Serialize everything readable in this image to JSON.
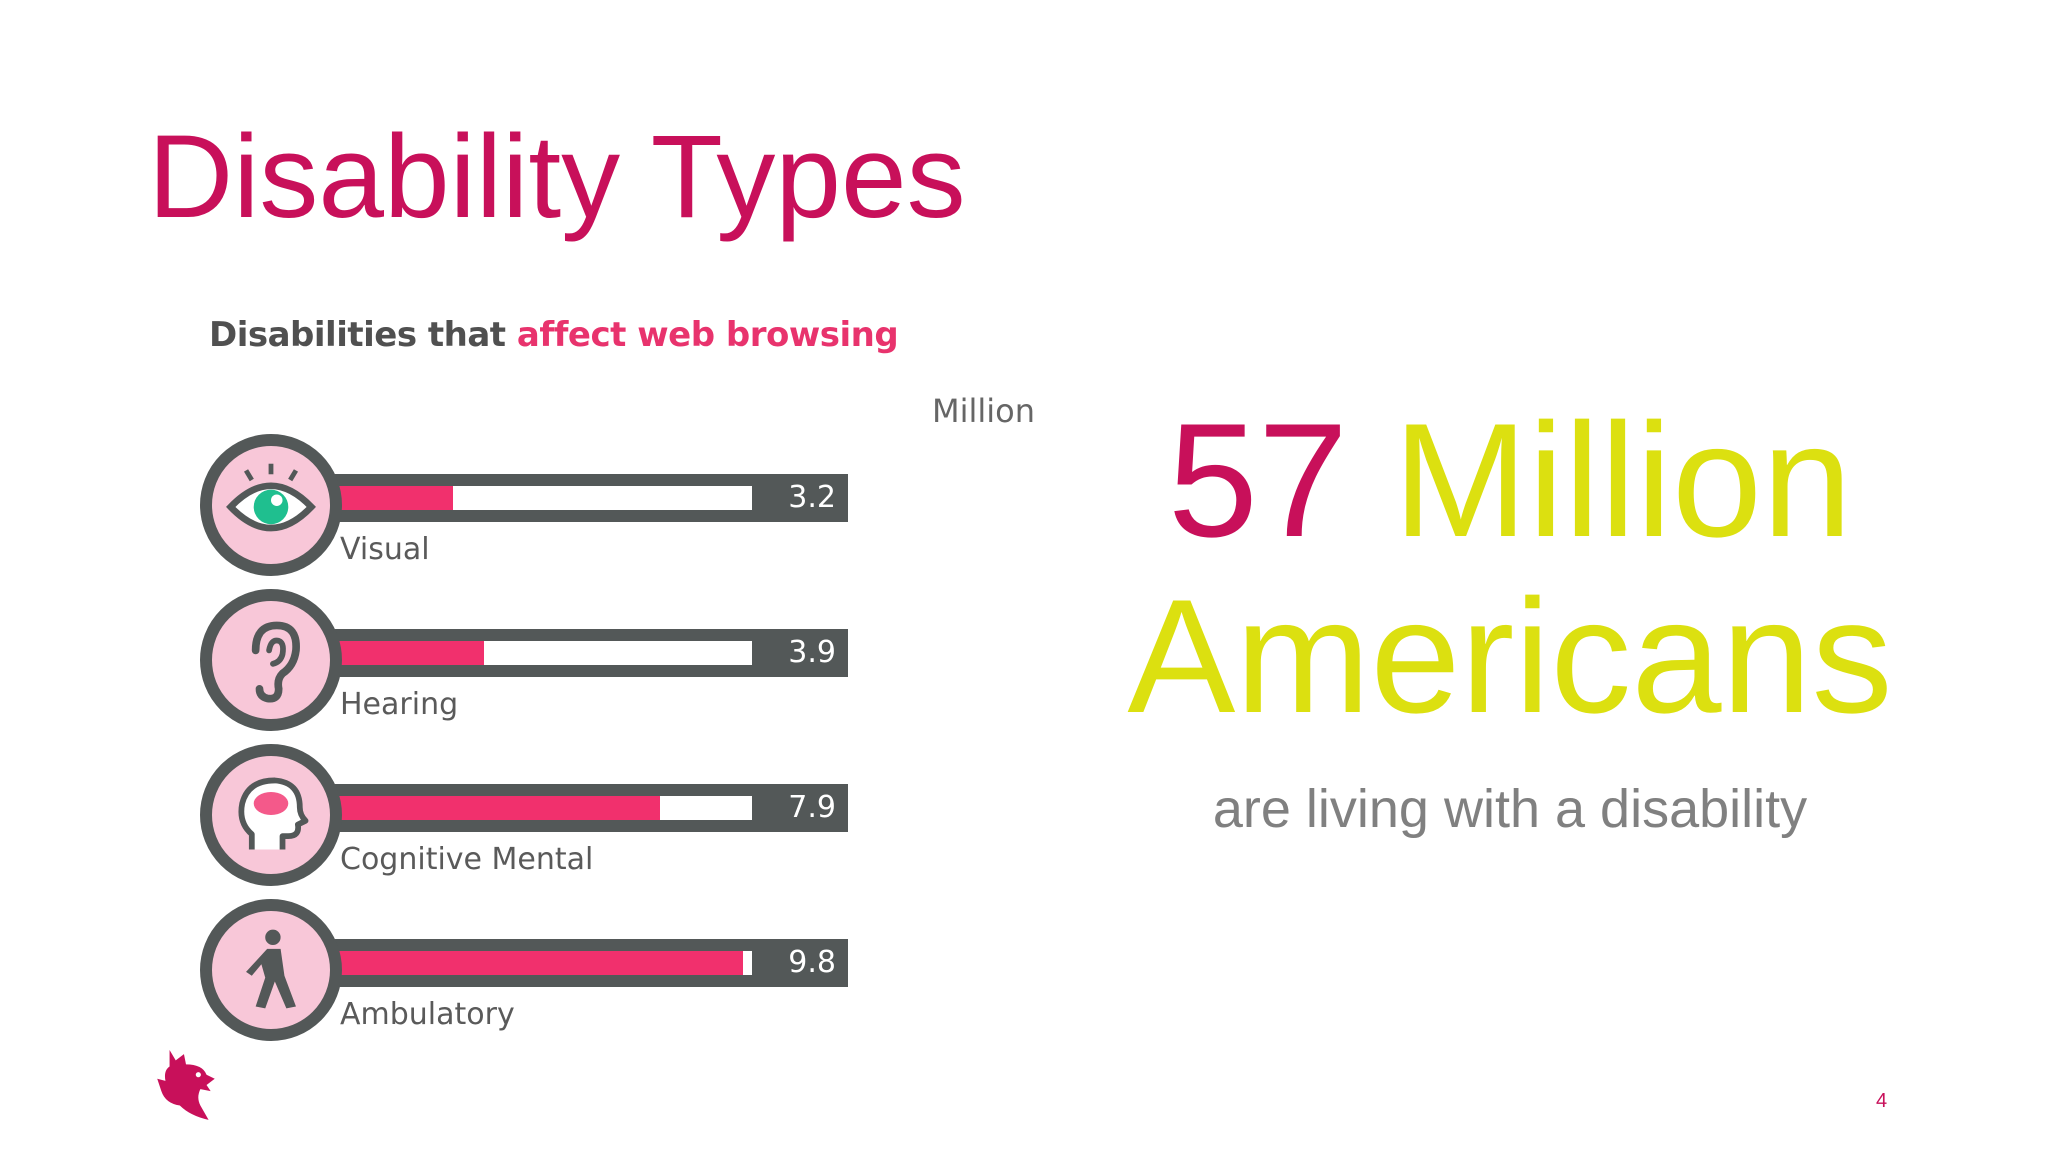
{
  "slide": {
    "title": "Disability Types",
    "page_number": "4"
  },
  "infographic": {
    "heading_prefix": "Disabilities that ",
    "heading_accent": "affect web browsing",
    "unit_label": "Million",
    "max_value": 10,
    "rows": [
      {
        "label": "Visual",
        "value": "3.2",
        "icon": "eye-icon"
      },
      {
        "label": "Hearing",
        "value": "3.9",
        "icon": "ear-icon"
      },
      {
        "label": "Cognitive Mental",
        "value": "7.9",
        "icon": "head-brain-icon"
      },
      {
        "label": "Ambulatory",
        "value": "9.8",
        "icon": "walking-person-icon"
      }
    ]
  },
  "stat": {
    "number": "57",
    "unit": "Million",
    "subject": "Americans",
    "caption": "are living with a disability"
  },
  "colors": {
    "title": "#c8105a",
    "stat_accent": "#dce010",
    "bar_fill": "#f1306d",
    "bar_frame": "#535858"
  },
  "logo": {
    "icon": "dragon-logo-icon"
  }
}
